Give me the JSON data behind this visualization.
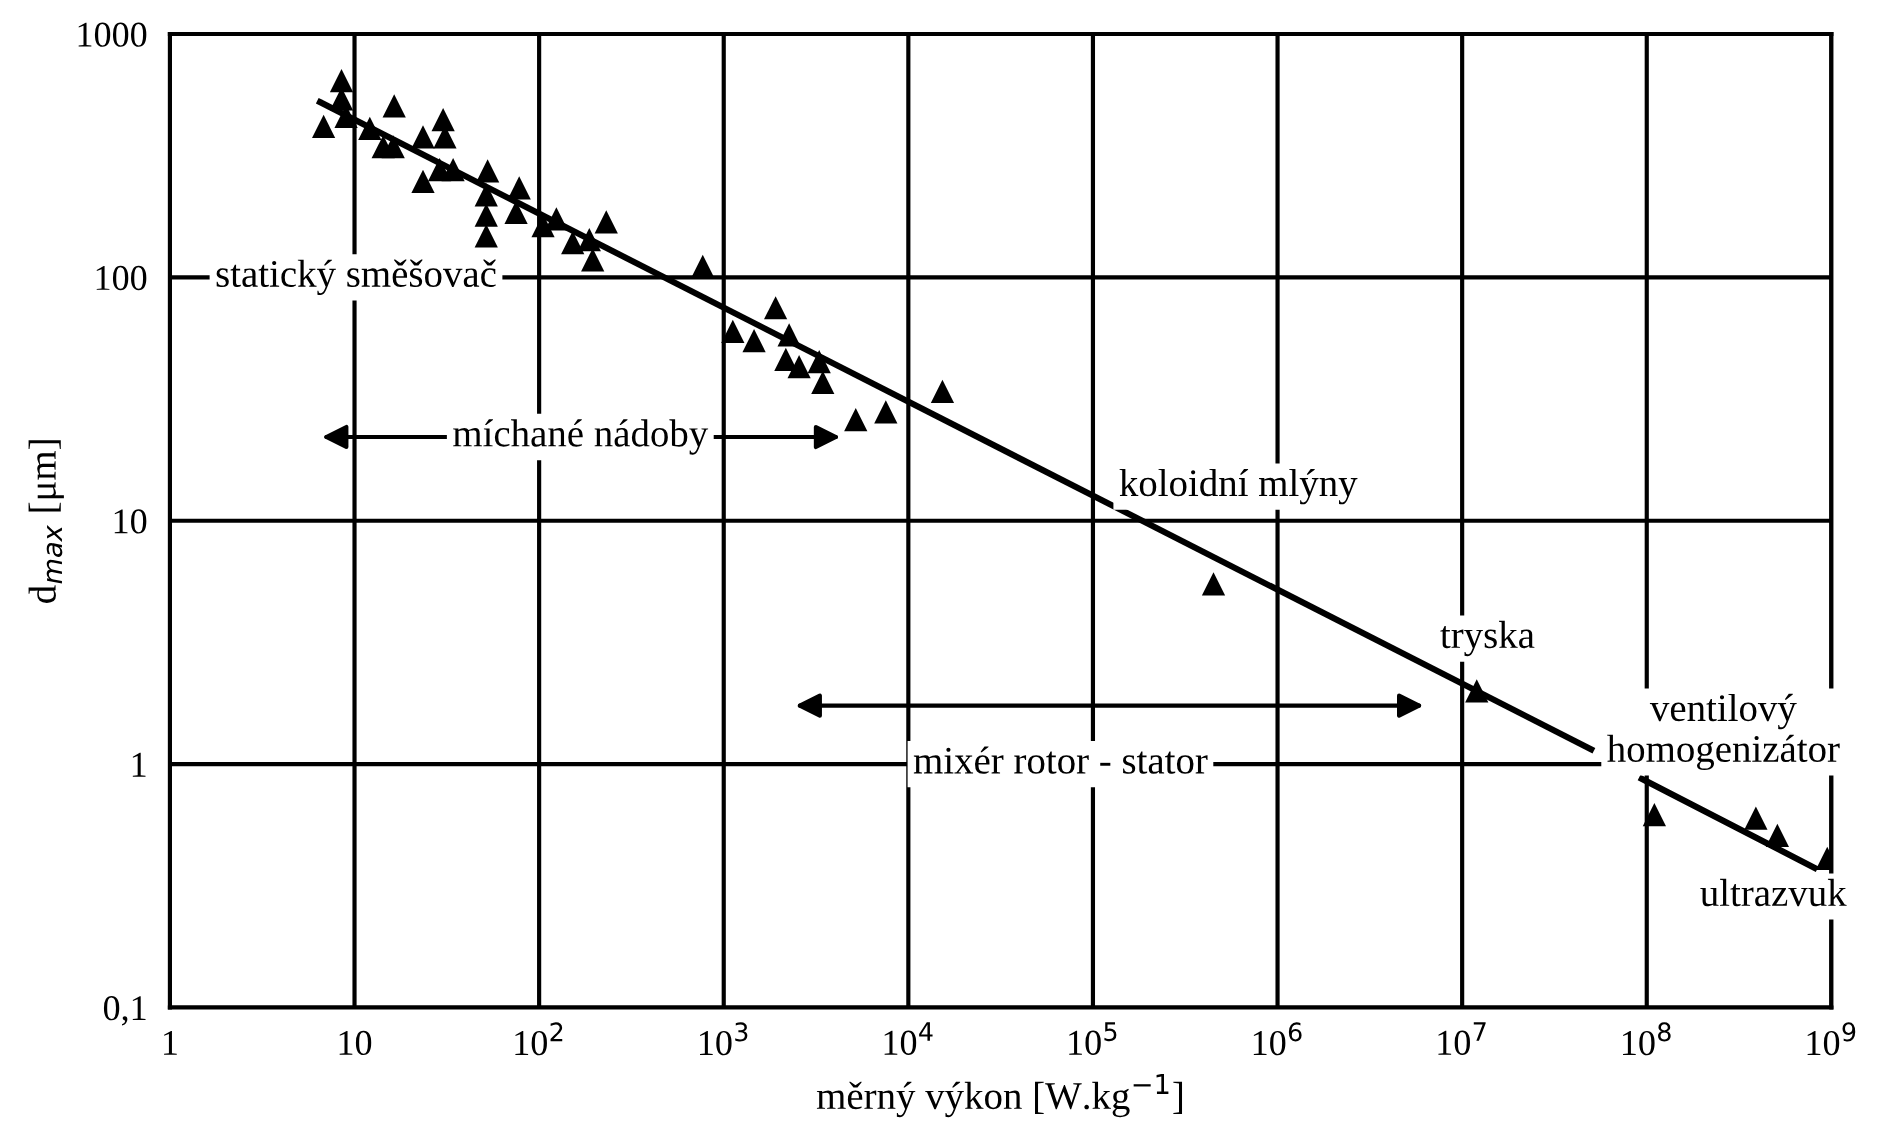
{
  "chart_data": {
    "type": "scatter",
    "xlabel": "měrný výkon [W.kg$^{−1}$]",
    "ylabel": "d$_{max}$ [μm]",
    "log": "xy",
    "grid": true,
    "xlim": [
      1,
      1000000000
    ],
    "ylim": [
      0.1,
      1000
    ],
    "xticks": [
      1,
      10,
      {
        "value": 100,
        "label": "10$^{2}$"
      },
      {
        "value": 1000,
        "label": "10$^{3}$"
      },
      {
        "value": 10000,
        "label": "10$^{4}$"
      },
      {
        "value": 100000,
        "label": "10$^{5}$"
      },
      {
        "value": 1000000,
        "label": "10$^{6}$"
      },
      {
        "value": 10000000,
        "label": "10$^{7}$"
      },
      {
        "value": 100000000,
        "label": "10$^{8}$"
      },
      {
        "value": 1000000000,
        "label": "10$^{9}$"
      }
    ],
    "yticks": [
      {
        "value": 0.1,
        "label": "0,1"
      },
      1,
      10,
      100,
      1000
    ],
    "series": [
      {
        "marker": "triangle",
        "color": "#000000",
        "x": [
          8.5,
          8.5,
          6.8,
          9.0,
          12.1,
          14.3,
          16.4,
          16.2,
          23.5,
          30.2,
          30.9,
          23.5,
          28.9,
          34.2,
          52.6,
          51.7,
          51.7,
          51.7,
          78,
          75,
          105,
          124,
          152,
          187,
          231,
          195,
          770,
          1120,
          1460,
          1910,
          2260,
          2170,
          2560,
          3290,
          3440,
          5190,
          7550,
          15300,
          450000,
          12000000,
          110000000,
          390000000,
          510000000,
          950000000
        ],
        "values": [
          643,
          541,
          417,
          459,
          409,
          344,
          507,
          344,
          378,
          445,
          378,
          248,
          277,
          277,
          274,
          218,
          180,
          148,
          233,
          185,
          163,
          174,
          139,
          143,
          169,
          118,
          111,
          60,
          55,
          75,
          58,
          46,
          43,
          45,
          37,
          26,
          28,
          34,
          5.5,
          2.0,
          0.62,
          0.6,
          0.51,
          0.41
        ]
      },
      {
        "type": "line",
        "color": "#000000",
        "x": [
          6.5,
          50000000
        ],
        "values": [
          525,
          1.15
        ]
      },
      {
        "type": "line",
        "color": "#000000",
        "x": [
          94000000,
          810000000
        ],
        "values": [
          0.87,
          0.375
        ]
      }
    ],
    "annotations": [
      "statický směšovač",
      "míchané nádoby",
      "koloidní mlýny",
      "tryska",
      "mixér rotor - stator",
      "ventilový\nhomogenizátor",
      "ultrazvuk"
    ]
  }
}
